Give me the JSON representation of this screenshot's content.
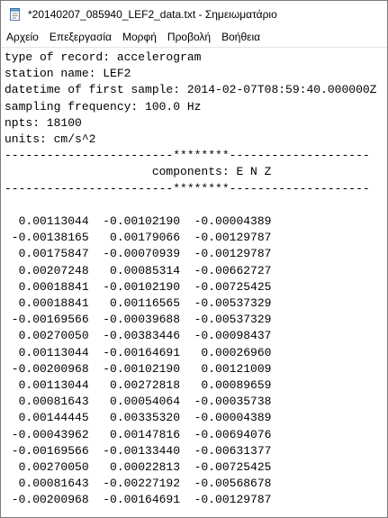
{
  "window": {
    "title": "*20140207_085940_LEF2_data.txt - Σημειωματάριο"
  },
  "menu": {
    "items": [
      "Αρχείο",
      "Επεξεργασία",
      "Μορφή",
      "Προβολή",
      "Βοήθεια"
    ]
  },
  "document": {
    "lines": [
      "type of record: accelerogram",
      "station name: LEF2",
      "datetime of first sample: 2014-02-07T08:59:40.000000Z",
      "sampling frequency: 100.0 Hz",
      "npts: 18100",
      "units: cm/s^2",
      "------------------------********--------------------",
      "                     components: E N Z",
      "------------------------********--------------------",
      "",
      "  0.00113044  -0.00102190  -0.00004389",
      " -0.00138165   0.00179066  -0.00129787",
      "  0.00175847  -0.00070939  -0.00129787",
      "  0.00207248   0.00085314  -0.00662727",
      "  0.00018841  -0.00102190  -0.00725425",
      "  0.00018841   0.00116565  -0.00537329",
      " -0.00169566  -0.00039688  -0.00537329",
      "  0.00270050  -0.00383446  -0.00098437",
      "  0.00113044  -0.00164691   0.00026960",
      " -0.00200968  -0.00102190   0.00121009",
      "  0.00113044   0.00272818   0.00089659",
      "  0.00081643   0.00054064  -0.00035738",
      "  0.00144445   0.00335320  -0.00004389",
      " -0.00043962   0.00147816  -0.00694076",
      " -0.00169566  -0.00133440  -0.00631377",
      "  0.00270050   0.00022813  -0.00725425",
      "  0.00081643  -0.00227192  -0.00568678",
      " -0.00200968  -0.00164691  -0.00129787",
      "      ...          ...          ..."
    ]
  }
}
